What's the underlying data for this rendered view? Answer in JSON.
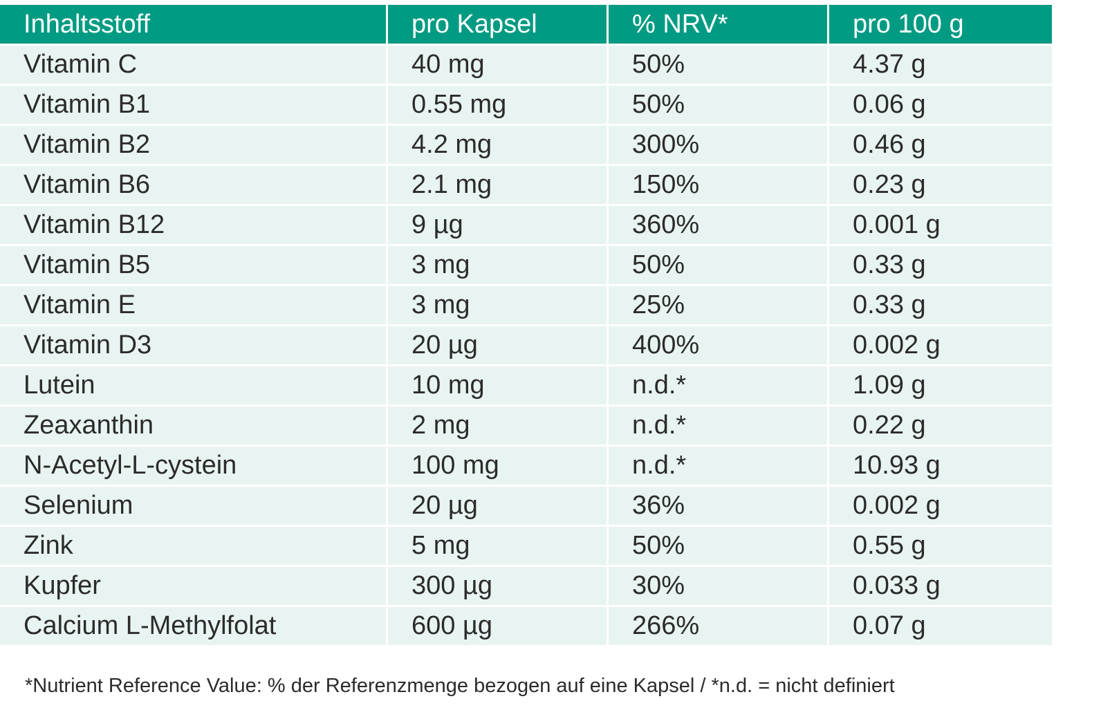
{
  "table": {
    "headers": [
      "Inhaltsstoff",
      "pro Kapsel",
      "% NRV*",
      "pro 100 g"
    ],
    "rows": [
      [
        "Vitamin C",
        "40 mg",
        "50%",
        "4.37 g"
      ],
      [
        "Vitamin B1",
        "0.55 mg",
        "50%",
        "0.06 g"
      ],
      [
        "Vitamin B2",
        "4.2 mg",
        "300%",
        "0.46 g"
      ],
      [
        "Vitamin B6",
        "2.1 mg",
        "150%",
        "0.23 g"
      ],
      [
        "Vitamin B12",
        "9 µg",
        "360%",
        "0.001 g"
      ],
      [
        "Vitamin B5",
        "3 mg",
        "50%",
        "0.33 g"
      ],
      [
        "Vitamin E",
        "3 mg",
        "25%",
        "0.33 g"
      ],
      [
        "Vitamin D3",
        "20 µg",
        "400%",
        "0.002 g"
      ],
      [
        "Lutein",
        "10 mg",
        "n.d.*",
        "1.09 g"
      ],
      [
        "Zeaxanthin",
        "2 mg",
        "n.d.*",
        "0.22 g"
      ],
      [
        "N-Acetyl-L-cystein",
        "100 mg",
        "n.d.*",
        "10.93 g"
      ],
      [
        "Selenium",
        "20 µg",
        "36%",
        "0.002 g"
      ],
      [
        "Zink",
        "5 mg",
        "50%",
        "0.55 g"
      ],
      [
        "Kupfer",
        "300 µg",
        "30%",
        "0.033 g"
      ],
      [
        "Calcium L-Methylfolat",
        "600 µg",
        "266%",
        "0.07 g"
      ]
    ]
  },
  "footnote": "*Nutrient Reference Value: % der Referenzmenge bezogen auf eine Kapsel / *n.d. = nicht definiert",
  "colors": {
    "header_background": "#009b82",
    "header_text": "#ffffff",
    "row_background": "#e8f4f1",
    "text": "#2b2b2b"
  }
}
